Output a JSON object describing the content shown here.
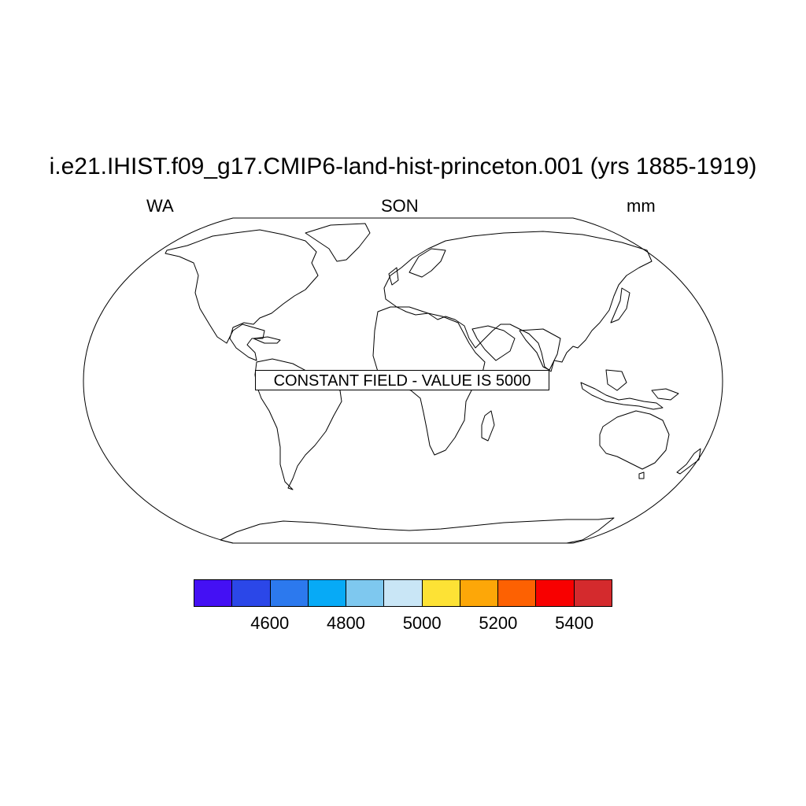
{
  "map": {
    "title": "i.e21.IHIST.f09_g17.CMIP6-land-hist-princeton.001 (yrs 1885-1919)",
    "left_string": "WA",
    "center_string": "SON",
    "right_string": "mm",
    "projection": "robinson",
    "annotation": "CONSTANT FIELD - VALUE IS 5000"
  },
  "colorbar": {
    "colors": [
      "#4410f4",
      "#2b47e8",
      "#2c79ee",
      "#07aaf6",
      "#7ec8ef",
      "#c9e6f6",
      "#fde235",
      "#fda708",
      "#fd6102",
      "#f80000",
      "#d42a2d"
    ],
    "labels": [
      "4600",
      "4800",
      "5000",
      "5200",
      "5400"
    ]
  }
}
